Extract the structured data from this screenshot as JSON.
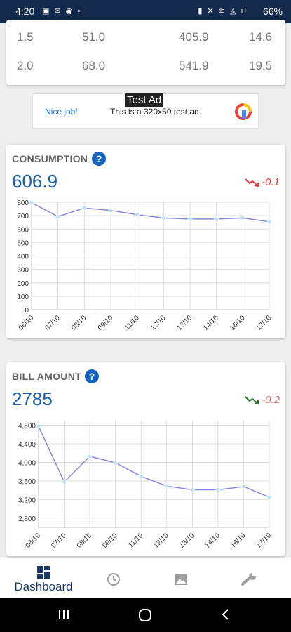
{
  "status_bar": {
    "time": "4:20",
    "battery": "66%"
  },
  "table": {
    "rows": [
      [
        "1.5",
        "51.0",
        "405.9",
        "14.6"
      ],
      [
        "2.0",
        "68.0",
        "541.9",
        "19.5"
      ]
    ]
  },
  "ad": {
    "badge": "Test Ad",
    "nice": "Nice job!",
    "text": "This is a 320x50 test ad."
  },
  "consumption": {
    "title": "CONSUMPTION",
    "help": "?",
    "value": "606.9",
    "trend": "-0.1",
    "trend_color": "#e53935"
  },
  "bill": {
    "title": "BILL AMOUNT",
    "help": "?",
    "value": "2785",
    "trend": "-0.2",
    "trend_color": "#2e7d32"
  },
  "chart_data": [
    {
      "type": "line",
      "title": "CONSUMPTION",
      "categories": [
        "06/10",
        "07/10",
        "08/10",
        "09/10",
        "11/10",
        "12/10",
        "13/10",
        "14/10",
        "16/10",
        "17/10"
      ],
      "values": [
        797,
        693,
        757,
        739,
        707,
        683,
        675,
        675,
        683,
        655
      ],
      "ylim": [
        0,
        800
      ],
      "yticks": [
        "0",
        "100",
        "200",
        "300",
        "400",
        "500",
        "600",
        "700",
        "800"
      ],
      "grid": true,
      "line_color": "#8a86e0",
      "marker_color": "#b8e4f8"
    },
    {
      "type": "line",
      "title": "BILL AMOUNT",
      "categories": [
        "06/10",
        "07/10",
        "08/10",
        "09/10",
        "11/10",
        "12/10",
        "13/10",
        "14/10",
        "16/10",
        "17/10"
      ],
      "values": [
        4780,
        3580,
        4130,
        3990,
        3700,
        3490,
        3410,
        3410,
        3480,
        3250
      ],
      "ylim": [
        2600,
        4900
      ],
      "yticks": [
        "2,800",
        "3,200",
        "3,600",
        "4,000",
        "4,400",
        "4,800"
      ],
      "ytick_values": [
        2800,
        3200,
        3600,
        4000,
        4400,
        4800
      ],
      "grid": true,
      "line_color": "#8a86e0",
      "marker_color": "#b8e4f8"
    }
  ],
  "nav": {
    "items": [
      {
        "label": "Dashboard",
        "icon": "dashboard-icon"
      },
      {
        "label": "",
        "icon": "history-icon"
      },
      {
        "label": "",
        "icon": "image-icon"
      },
      {
        "label": "",
        "icon": "wrench-icon"
      }
    ]
  }
}
